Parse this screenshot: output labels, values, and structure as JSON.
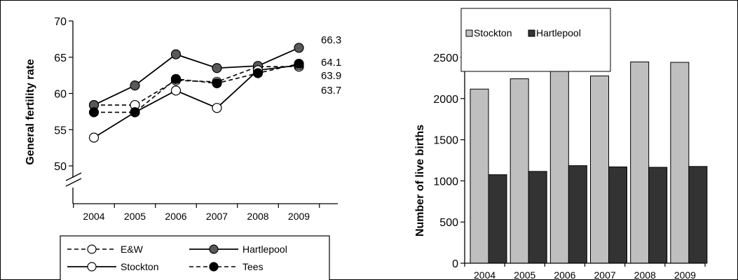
{
  "chart_data": [
    {
      "type": "line",
      "ylabel": "General fertility rate",
      "xlabel": "",
      "ylim": [
        50,
        70
      ],
      "axis_break": true,
      "y_ticks": [
        "70",
        "65",
        "60",
        "55",
        "50"
      ],
      "categories": [
        "2004",
        "2005",
        "2006",
        "2007",
        "2008",
        "2009"
      ],
      "legend_position": "bottom",
      "series": [
        {
          "name": "E&W",
          "values": [
            58.4,
            58.4,
            61.8,
            61.6,
            63.7,
            63.7
          ],
          "line_style": "dashed",
          "marker": "open-circle"
        },
        {
          "name": "Hartlepool",
          "values": [
            58.4,
            61.1,
            65.4,
            63.5,
            63.8,
            66.3
          ],
          "line_style": "solid",
          "marker": "grey-circle"
        },
        {
          "name": "Stockton",
          "values": [
            53.9,
            57.4,
            60.4,
            58.0,
            63.2,
            63.9
          ],
          "line_style": "solid",
          "marker": "open-circle"
        },
        {
          "name": "Tees",
          "values": [
            57.4,
            57.4,
            62.0,
            61.4,
            62.8,
            64.1
          ],
          "line_style": "dashed",
          "marker": "black-circle"
        }
      ],
      "end_labels": [
        "66.3",
        "64.1",
        "63.9",
        "63.7"
      ]
    },
    {
      "type": "bar",
      "ylabel": "Number of live births",
      "xlabel": "",
      "ylim": [
        0,
        2500
      ],
      "y_ticks": [
        "0",
        "500",
        "1000",
        "1500",
        "2000",
        "2500"
      ],
      "categories": [
        "2004",
        "2005",
        "2006",
        "2007",
        "2008",
        "2009"
      ],
      "legend_position": "top",
      "series": [
        {
          "name": "Stockton",
          "values": [
            2115,
            2240,
            2385,
            2275,
            2445,
            2440
          ]
        },
        {
          "name": "Hartlepool",
          "values": [
            1075,
            1115,
            1185,
            1170,
            1165,
            1175
          ]
        }
      ]
    }
  ],
  "colors": {
    "hartlepool_marker": "#595959",
    "tees_marker": "#000000",
    "stockton_bar": "#bfbfbf",
    "hartlepool_bar": "#333333",
    "axis": "#000000"
  }
}
